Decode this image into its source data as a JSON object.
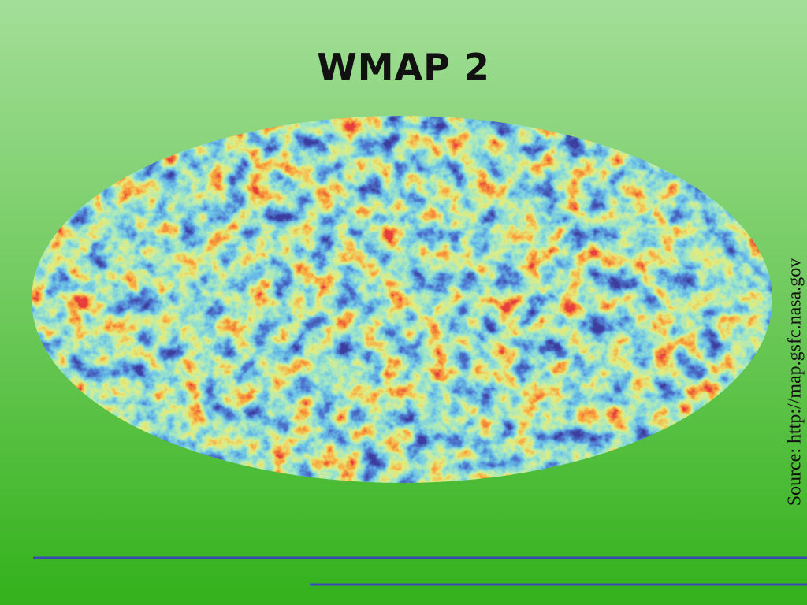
{
  "title": "WMAP 2",
  "source": "Source: http://map.gsfc.nasa.gov"
}
